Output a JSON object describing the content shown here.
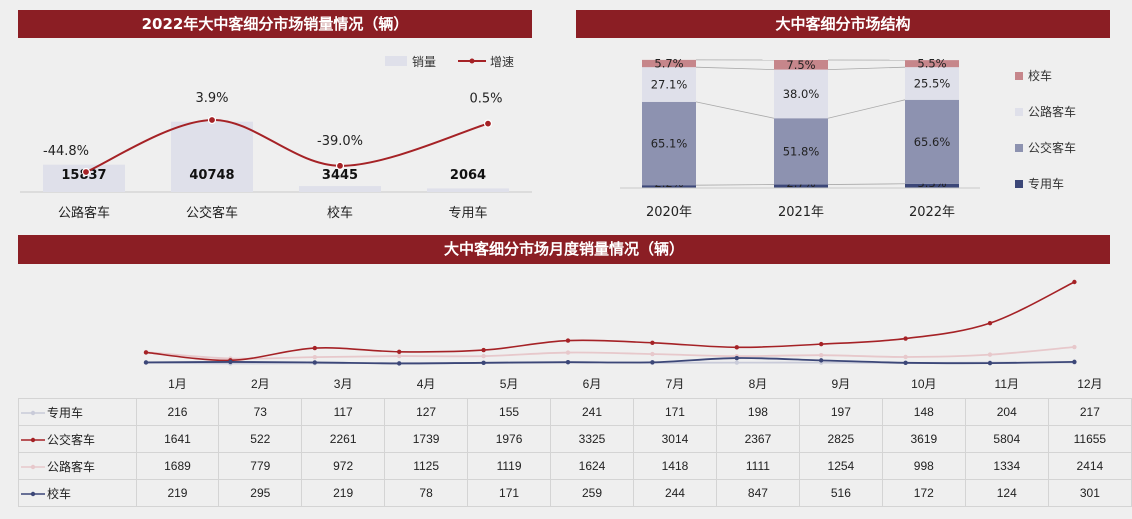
{
  "colors": {
    "banner": "#8b1e24",
    "line_red": "#a52226",
    "pink": "#e7c8cb",
    "navy": "#3c4778",
    "bar_light": "#dfe0ea",
    "bus_gray": "#8d92b0",
    "school_pink": "#c6868b"
  },
  "panel1": {
    "title": "2022年大中客细分市场销量情况（辆）",
    "legend": {
      "volume": "销量",
      "growth": "增速"
    },
    "chart_data": {
      "type": "bar",
      "categories": [
        "公路客车",
        "公交客车",
        "校车",
        "专用车"
      ],
      "series": [
        {
          "name": "销量",
          "values": [
            15837,
            40748,
            3445,
            2064
          ],
          "labels": [
            "15837",
            "40748",
            "3445",
            "2064"
          ]
        },
        {
          "name": "增速",
          "type": "line",
          "values": [
            -44.8,
            3.9,
            -39.0,
            0.5
          ],
          "labels": [
            "-44.8%",
            "3.9%",
            "-39.0%",
            "0.5%"
          ]
        }
      ]
    }
  },
  "panel2": {
    "title": "大中客细分市场结构",
    "chart_data": {
      "type": "bar",
      "stacked": true,
      "categories": [
        "2020年",
        "2021年",
        "2022年"
      ],
      "legend_position": "right",
      "series": [
        {
          "name": "专用车",
          "values": [
            2.2,
            2.7,
            3.3
          ],
          "labels": [
            "2.2%",
            "2.7%",
            "3.3%"
          ],
          "color": "#3c4778"
        },
        {
          "name": "公交客车",
          "values": [
            65.1,
            51.8,
            65.6
          ],
          "labels": [
            "65.1%",
            "51.8%",
            "65.6%"
          ],
          "color": "#8d92b0"
        },
        {
          "name": "公路客车",
          "values": [
            27.1,
            38.0,
            25.5
          ],
          "labels": [
            "27.1%",
            "38.0%",
            "25.5%"
          ],
          "color": "#dfe0ea"
        },
        {
          "name": "校车",
          "values": [
            5.7,
            7.5,
            5.5
          ],
          "labels": [
            "5.7%",
            "7.5%",
            "5.5%"
          ],
          "color": "#c6868b"
        }
      ]
    }
  },
  "panel3": {
    "title": "大中客细分市场月度销量情况（辆）",
    "chart_data": {
      "type": "line",
      "categories": [
        "1月",
        "2月",
        "3月",
        "4月",
        "5月",
        "6月",
        "7月",
        "8月",
        "9月",
        "10月",
        "11月",
        "12月"
      ],
      "series": [
        {
          "name": "专用车",
          "values": [
            216,
            73,
            117,
            127,
            155,
            241,
            171,
            198,
            197,
            148,
            204,
            217
          ],
          "color": "#c9cbd9"
        },
        {
          "name": "公交客车",
          "values": [
            1641,
            522,
            2261,
            1739,
            1976,
            3325,
            3014,
            2367,
            2825,
            3619,
            5804,
            11655
          ],
          "color": "#a52226"
        },
        {
          "name": "公路客车",
          "values": [
            1689,
            779,
            972,
            1125,
            1119,
            1624,
            1418,
            1111,
            1254,
            998,
            1334,
            2414
          ],
          "color": "#e7c8cb"
        },
        {
          "name": "校车",
          "values": [
            219,
            295,
            219,
            78,
            171,
            259,
            244,
            847,
            516,
            172,
            124,
            301
          ],
          "color": "#3c4778"
        }
      ]
    }
  }
}
